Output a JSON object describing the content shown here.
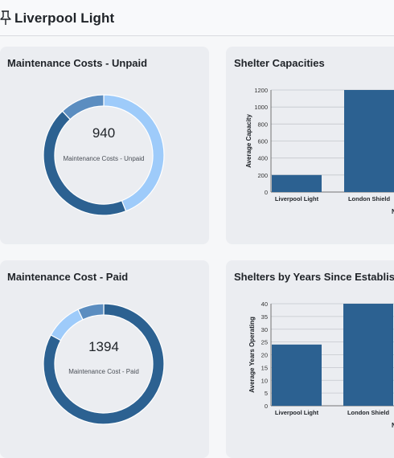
{
  "header": {
    "title": "Liverpool Light",
    "pin_icon": "pin-icon"
  },
  "colors": {
    "dark_blue": "#2c6191",
    "mid_blue": "#5b8dc0",
    "light_blue": "#9ecbfa",
    "card_bg": "#ebedf1"
  },
  "cards": {
    "unpaid": {
      "title": "Maintenance Costs - Unpaid",
      "value": "940",
      "label": "Maintenance Costs - Unpaid"
    },
    "paid": {
      "title": "Maintenance Cost - Paid",
      "value": "1394",
      "label": "Maintenance Cost - Paid"
    },
    "capacities": {
      "title": "Shelter Capacities"
    },
    "years": {
      "title": "Shelters by Years Since Established"
    }
  },
  "chart_data": [
    {
      "type": "pie",
      "subtype": "donut",
      "title": "Maintenance Costs - Unpaid",
      "total": 940,
      "slices": [
        {
          "color": "#9ecbfa",
          "fraction": 0.44
        },
        {
          "color": "#2c6191",
          "fraction": 0.44
        },
        {
          "color": "#5b8dc0",
          "fraction": 0.12
        }
      ]
    },
    {
      "type": "pie",
      "subtype": "donut",
      "title": "Maintenance Cost - Paid",
      "total": 1394,
      "slices": [
        {
          "color": "#2c6191",
          "fraction": 0.83
        },
        {
          "color": "#9ecbfa",
          "fraction": 0.1
        },
        {
          "color": "#5b8dc0",
          "fraction": 0.07
        }
      ]
    },
    {
      "type": "bar",
      "title": "Shelter Capacities",
      "categories": [
        "Liverpool Light",
        "London Shield"
      ],
      "values": [
        200,
        1200
      ],
      "ylabel": "Average Capacity",
      "xlabel": "N",
      "ylim": [
        0,
        1200
      ],
      "yticks": [
        0,
        200,
        400,
        600,
        800,
        1000,
        1200
      ],
      "grid": true
    },
    {
      "type": "bar",
      "title": "Shelters by Years Since Established",
      "categories": [
        "Liverpool Light",
        "London Shield"
      ],
      "values": [
        24,
        40
      ],
      "ylabel": "Average Years Operating",
      "xlabel": "N",
      "ylim": [
        0,
        40
      ],
      "yticks": [
        0,
        5,
        10,
        15,
        20,
        25,
        30,
        35,
        40
      ],
      "grid": true
    }
  ]
}
